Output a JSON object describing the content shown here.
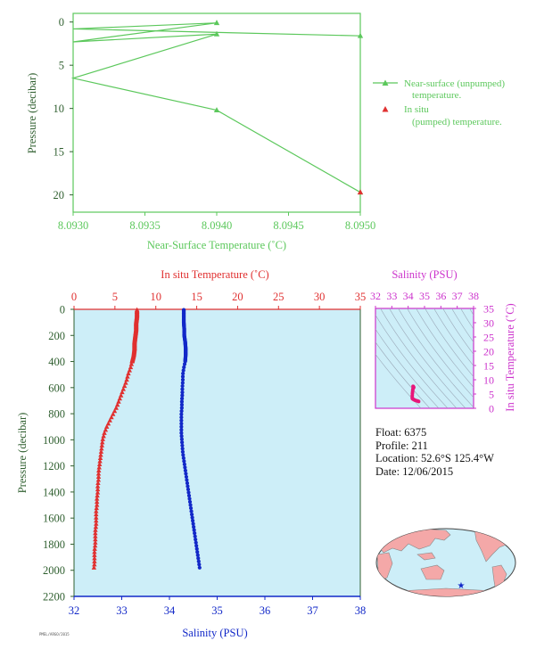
{
  "colors": {
    "green": "#5cc85c",
    "axis_green": "#2f5f2f",
    "red": "#e03030",
    "blue": "#1228c8",
    "magenta": "#cc33cc",
    "plot_fill": "#cdeef8",
    "land": "#f4a8a8",
    "ocean": "#cdeef8"
  },
  "info": {
    "float": "Float:  6375",
    "profile": "Profile:  211",
    "location": "Location:  52.6°S  125.4°W",
    "date": "Date:  12/06/2015"
  },
  "stamp": "PMEL/ARGO/2015",
  "chart_data": [
    {
      "type": "line",
      "xlabel": "Near-Surface Temperature (˚C)",
      "ylabel": "Pressure (decibar)",
      "xlim": [
        8.093,
        8.095
      ],
      "ylim": [
        22,
        -1
      ],
      "xticks": [
        "8.0930",
        "8.0935",
        "8.0940",
        "8.0945",
        "8.0950"
      ],
      "yticks": [
        "0",
        "5",
        "10",
        "15",
        "20"
      ],
      "series": [
        {
          "name": "Near-surface (unpumped) temperature.",
          "x": [
            8.095,
            8.094,
            8.093,
            8.094,
            8.093,
            8.094,
            8.093,
            8.095
          ],
          "y": [
            19.7,
            10.2,
            6.5,
            1.4,
            2.3,
            0.1,
            0.8,
            1.6
          ]
        },
        {
          "name": "In situ (pumped) temperature.",
          "x": [
            8.095
          ],
          "y": [
            19.7
          ]
        }
      ],
      "legend": "right"
    },
    {
      "type": "scatter",
      "title_top": "In situ Temperature (˚C)",
      "xlabel_bottom": "Salinity (PSU)",
      "ylabel": "Pressure (decibar)",
      "xlim_top": [
        0,
        35
      ],
      "xlim_bottom": [
        32,
        38
      ],
      "ylim": [
        2200,
        0
      ],
      "xticks_top": [
        "0",
        "5",
        "10",
        "15",
        "20",
        "25",
        "30",
        "35"
      ],
      "xticks_bottom": [
        "32",
        "33",
        "34",
        "35",
        "36",
        "37",
        "38"
      ],
      "yticks": [
        "0",
        "200",
        "400",
        "600",
        "800",
        "1000",
        "1200",
        "1400",
        "1600",
        "1800",
        "2000",
        "2200"
      ],
      "series": [
        {
          "name": "temperature",
          "pressure": [
            4,
            50,
            100,
            150,
            200,
            250,
            300,
            350,
            400,
            450,
            500,
            550,
            600,
            650,
            700,
            750,
            800,
            850,
            900,
            950,
            1000,
            1050,
            1100,
            1150,
            1200,
            1250,
            1300,
            1350,
            1400,
            1450,
            1500,
            1550,
            1600,
            1650,
            1700,
            1750,
            1800,
            1850,
            1900,
            1950,
            2000
          ],
          "values": [
            7.7,
            7.7,
            7.6,
            7.6,
            7.5,
            7.4,
            7.4,
            7.3,
            7.1,
            6.9,
            6.6,
            6.4,
            6.1,
            5.8,
            5.5,
            5.2,
            4.8,
            4.4,
            4.0,
            3.7,
            3.5,
            3.4,
            3.3,
            3.2,
            3.1,
            3.0,
            3.0,
            2.9,
            2.9,
            2.8,
            2.8,
            2.7,
            2.7,
            2.7,
            2.6,
            2.6,
            2.6,
            2.5,
            2.5,
            2.5,
            2.4
          ]
        },
        {
          "name": "salinity",
          "pressure": [
            4,
            50,
            100,
            150,
            200,
            250,
            300,
            350,
            400,
            450,
            500,
            550,
            600,
            650,
            700,
            750,
            800,
            850,
            900,
            950,
            1000,
            1050,
            1100,
            1150,
            1200,
            1250,
            1300,
            1350,
            1400,
            1450,
            1500,
            1550,
            1600,
            1650,
            1700,
            1750,
            1800,
            1850,
            1900,
            1950,
            2000
          ],
          "values": [
            34.3,
            34.3,
            34.3,
            34.31,
            34.31,
            34.33,
            34.34,
            34.34,
            34.33,
            34.3,
            34.28,
            34.28,
            34.27,
            34.27,
            34.26,
            34.26,
            34.25,
            34.25,
            34.25,
            34.25,
            34.26,
            34.27,
            34.28,
            34.3,
            34.32,
            34.34,
            34.36,
            34.38,
            34.4,
            34.42,
            34.44,
            34.46,
            34.48,
            34.5,
            34.52,
            34.54,
            34.56,
            34.58,
            34.6,
            34.62,
            34.64
          ]
        }
      ]
    },
    {
      "type": "scatter",
      "title_top": "Salinity (PSU)",
      "ylabel_right": "In situ Temperature (˚C)",
      "xlim": [
        32,
        38
      ],
      "ylim": [
        0,
        35
      ],
      "xticks": [
        "32",
        "33",
        "34",
        "35",
        "36",
        "37",
        "38"
      ],
      "yticks": [
        "0",
        "5",
        "10",
        "15",
        "20",
        "25",
        "30",
        "35"
      ],
      "points": {
        "salinity": [
          34.3,
          34.31,
          34.33,
          34.34,
          34.3,
          34.28,
          34.27,
          34.26,
          34.25,
          34.25,
          34.26,
          34.3,
          34.36,
          34.42,
          34.48,
          34.54,
          34.6,
          34.64
        ],
        "temperature": [
          7.7,
          7.6,
          7.4,
          7.3,
          6.9,
          6.4,
          5.8,
          5.2,
          4.4,
          3.7,
          3.4,
          3.2,
          3.0,
          2.8,
          2.7,
          2.6,
          2.5,
          2.4
        ]
      }
    }
  ]
}
